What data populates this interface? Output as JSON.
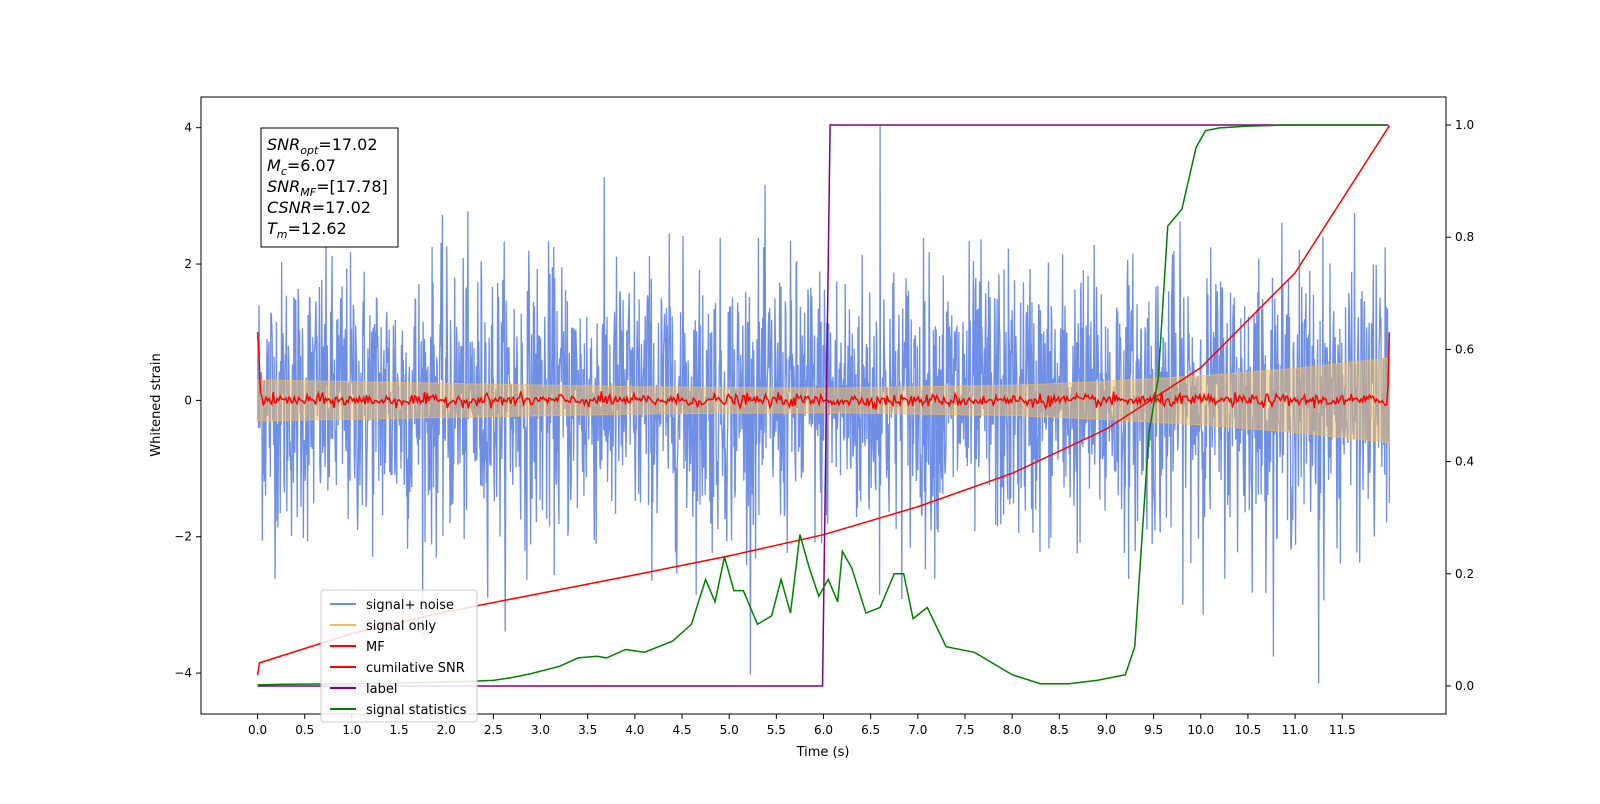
{
  "chart_data": {
    "type": "line",
    "xlabel": "Time (s)",
    "ylabel": "Whitened strain",
    "xlim": [
      -0.6,
      12.6
    ],
    "ylim": [
      -4.6,
      4.45
    ],
    "y2lim": [
      -0.05,
      1.05
    ],
    "x_ticks": [
      0.0,
      0.5,
      1.0,
      1.5,
      2.0,
      2.5,
      3.0,
      3.5,
      4.0,
      4.5,
      5.0,
      5.5,
      6.0,
      6.5,
      7.0,
      7.5,
      8.0,
      8.5,
      9.0,
      9.5,
      10.0,
      10.5,
      11.0,
      11.5
    ],
    "x_tick_labels": [
      "0.0",
      "0.5",
      "1.0",
      "1.5",
      "2.0",
      "2.5",
      "3.0",
      "3.5",
      "4.0",
      "4.5",
      "5.0",
      "5.5",
      "6.0",
      "6.5",
      "7.0",
      "7.5",
      "8.0",
      "8.5",
      "9.0",
      "9.5",
      "10.0",
      "10.5",
      "11.0",
      "11.5"
    ],
    "y_ticks": [
      4,
      2,
      0,
      -2,
      -4
    ],
    "y_tick_labels": [
      "4",
      "2",
      "0",
      "−2",
      "−4"
    ],
    "y2_ticks": [
      1.0,
      0.8,
      0.6,
      0.4,
      0.2,
      0.0
    ],
    "y2_tick_labels": [
      "1.0",
      "0.8",
      "0.6",
      "0.4",
      "0.2",
      "0.0"
    ],
    "grid": false,
    "legend_position": "lower-left",
    "annotation": [
      {
        "main": "SNR",
        "sub": "opt",
        "value": "=17.02"
      },
      {
        "main": "M",
        "sub": "c",
        "value": "=6.07"
      },
      {
        "main": "SNR",
        "sub": "MF",
        "value": "=[17.78]"
      },
      {
        "main": "CSNR",
        "sub": "",
        "value": "=17.02"
      },
      {
        "main": "T",
        "sub": "m",
        "value": "=12.62"
      }
    ],
    "series": [
      {
        "name": "signal+ noise",
        "color": "#6f8fe6",
        "axis": "left",
        "x_range": [
          0.0,
          12.0
        ],
        "approx_amplitude_sd": 1.0,
        "peak_max": 4.03,
        "peak_min": -4.15
      },
      {
        "name": "signal only",
        "color": "#f5bd5a",
        "axis": "left",
        "x": [
          0.0,
          2.0,
          4.0,
          6.0,
          8.0,
          9.0,
          10.0,
          11.0,
          12.0
        ],
        "envelope": [
          0.3,
          0.25,
          0.2,
          0.18,
          0.22,
          0.28,
          0.36,
          0.47,
          0.62
        ]
      },
      {
        "name": "MF",
        "color": "#ff0000",
        "axis": "left",
        "x_range": [
          0.0,
          12.0
        ],
        "start_value": 1.0,
        "end_value": 1.0,
        "typical_value": 0.0
      },
      {
        "name": "cumilative SNR",
        "color": "#ff0000",
        "axis": "left",
        "x": [
          0.0,
          0.02,
          1.0,
          2.0,
          3.0,
          4.0,
          5.0,
          6.0,
          7.0,
          8.0,
          9.0,
          10.0,
          11.0,
          12.0
        ],
        "values": [
          -4.03,
          -3.85,
          -3.42,
          -3.1,
          -2.83,
          -2.56,
          -2.28,
          -1.97,
          -1.56,
          -1.07,
          -0.42,
          0.48,
          1.87,
          4.03
        ]
      },
      {
        "name": "label",
        "color": "#800080",
        "axis": "right",
        "x": [
          0.0,
          5.99,
          6.07,
          11.99
        ],
        "values": [
          0.0,
          0.0,
          1.0,
          1.0
        ]
      },
      {
        "name": "signal statistics",
        "color": "#008000",
        "axis": "right",
        "x": [
          0.0,
          0.3,
          1.0,
          1.5,
          2.0,
          2.2,
          2.5,
          2.7,
          2.9,
          3.2,
          3.4,
          3.6,
          3.7,
          3.9,
          4.1,
          4.4,
          4.6,
          4.75,
          4.85,
          4.95,
          5.05,
          5.15,
          5.3,
          5.45,
          5.55,
          5.65,
          5.75,
          5.85,
          5.95,
          6.05,
          6.15,
          6.2,
          6.3,
          6.45,
          6.6,
          6.75,
          6.85,
          6.95,
          7.1,
          7.3,
          7.6,
          7.8,
          8.0,
          8.3,
          8.6,
          8.9,
          9.2,
          9.3,
          9.45,
          9.55,
          9.65,
          9.8,
          9.95,
          10.05,
          10.2,
          10.5,
          10.9,
          11.0,
          11.5,
          11.95
        ],
        "values": [
          0.002,
          0.003,
          0.004,
          0.005,
          0.007,
          0.008,
          0.01,
          0.015,
          0.022,
          0.035,
          0.05,
          0.053,
          0.05,
          0.065,
          0.06,
          0.08,
          0.11,
          0.19,
          0.15,
          0.23,
          0.17,
          0.17,
          0.11,
          0.125,
          0.19,
          0.13,
          0.27,
          0.21,
          0.16,
          0.19,
          0.15,
          0.24,
          0.21,
          0.13,
          0.14,
          0.2,
          0.2,
          0.12,
          0.14,
          0.07,
          0.06,
          0.04,
          0.02,
          0.004,
          0.004,
          0.01,
          0.02,
          0.07,
          0.45,
          0.55,
          0.82,
          0.85,
          0.96,
          0.99,
          0.995,
          0.998,
          1.0,
          1.0,
          1.0,
          1.0
        ]
      }
    ]
  }
}
